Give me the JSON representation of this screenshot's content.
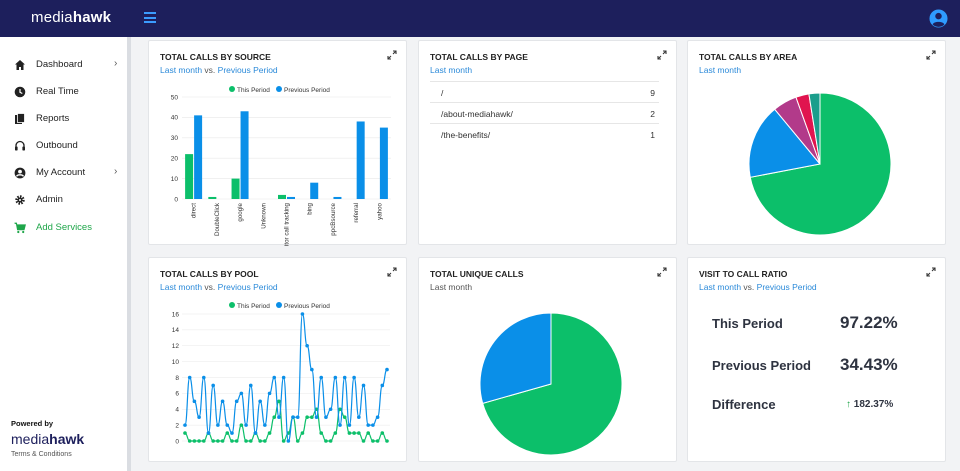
{
  "app": {
    "brand_light": "media",
    "brand_bold": "hawk"
  },
  "sidebar": {
    "items": [
      {
        "label": "Dashboard",
        "icon": "home-icon",
        "has_chevron": true
      },
      {
        "label": "Real Time",
        "icon": "clock-icon",
        "has_chevron": false
      },
      {
        "label": "Reports",
        "icon": "reports-icon",
        "has_chevron": false
      },
      {
        "label": "Outbound",
        "icon": "headset-icon",
        "has_chevron": false
      },
      {
        "label": "My Account",
        "icon": "user-circle-icon",
        "has_chevron": true
      },
      {
        "label": "Admin",
        "icon": "gear-icon",
        "has_chevron": false
      },
      {
        "label": "Add Services",
        "icon": "cart-icon",
        "has_chevron": false
      }
    ],
    "powered_by": "Powered by",
    "terms": "Terms & Conditions"
  },
  "cards": {
    "source": {
      "title": "TOTAL CALLS BY SOURCE",
      "sub_link1": "Last month",
      "sub_vs": " vs. ",
      "sub_link2": "Previous Period"
    },
    "page": {
      "title": "TOTAL CALLS BY PAGE",
      "sub_link1": "Last month",
      "rows": [
        {
          "path": "/",
          "count": "9"
        },
        {
          "path": "/about-mediahawk/",
          "count": "2"
        },
        {
          "path": "/the-benefits/",
          "count": "1"
        }
      ]
    },
    "area": {
      "title": "TOTAL CALLS BY AREA",
      "sub_link1": "Last month"
    },
    "pool": {
      "title": "TOTAL CALLS BY POOL",
      "sub_link1": "Last month",
      "sub_vs": " vs. ",
      "sub_link2": "Previous Period"
    },
    "unique": {
      "title": "TOTAL UNIQUE CALLS",
      "sub_text": "Last month"
    },
    "ratio": {
      "title": "VISIT TO CALL RATIO",
      "sub_link1": "Last month",
      "sub_vs": " vs. ",
      "sub_link2": "Previous Period",
      "this_label": "This Period",
      "this_value": "97.22%",
      "prev_label": "Previous Period",
      "prev_value": "34.43%",
      "diff_label": "Difference",
      "diff_arrow": "↑",
      "diff_value": "182.37%"
    }
  },
  "colors": {
    "this_period": "#0cbf6a",
    "previous_period": "#0a8fe8",
    "nav_green": "#1fa64a",
    "topbar": "#1d1f5c"
  },
  "chart_data": [
    {
      "type": "bar",
      "categories": [
        "direct",
        "DoubleClick",
        "google",
        "Unknown",
        "visitor call tracking",
        "bing",
        "ppcBsource",
        "referral",
        "yahoo"
      ],
      "series": [
        {
          "name": "This Period",
          "values": [
            22,
            1,
            10,
            0,
            2,
            0,
            0,
            0,
            0
          ]
        },
        {
          "name": "Previous Period",
          "values": [
            41,
            0,
            43,
            0,
            1,
            8,
            1,
            38,
            35
          ]
        }
      ],
      "yticks": [
        0,
        10,
        20,
        30,
        40,
        50
      ],
      "ylim": [
        0,
        50
      ],
      "legend": "top"
    },
    {
      "type": "pie",
      "labels": [
        "",
        "",
        "",
        "",
        ""
      ],
      "values": [
        72,
        17,
        5.5,
        3,
        2.5
      ],
      "colors": [
        "#0cbf6a",
        "#0a8fe8",
        "#b23a8a",
        "#e0144f",
        "#1b9e8c"
      ]
    },
    {
      "type": "line",
      "series": [
        {
          "name": "This Period",
          "values": [
            1,
            0,
            0,
            0,
            0,
            1,
            0,
            0,
            0,
            1,
            0,
            0,
            2,
            0,
            0,
            1,
            0,
            0,
            1,
            3,
            5,
            0,
            1,
            3,
            0,
            1,
            3,
            3,
            4,
            1,
            0,
            0,
            1,
            4,
            3,
            1,
            1,
            1,
            0,
            1,
            0,
            0,
            1,
            0
          ]
        },
        {
          "name": "Previous Period",
          "values": [
            2,
            8,
            5,
            3,
            8,
            1,
            7,
            2,
            5,
            2,
            1,
            5,
            6,
            2,
            7,
            1,
            5,
            2,
            6,
            8,
            3,
            8,
            0,
            3,
            3,
            16,
            12,
            9,
            3,
            8,
            3,
            4,
            8,
            2,
            8,
            2,
            8,
            3,
            7,
            2,
            2,
            3,
            7,
            9
          ]
        }
      ],
      "yticks": [
        0,
        2,
        4,
        6,
        8,
        10,
        12,
        14,
        16
      ],
      "ylim": [
        0,
        16
      ],
      "legend": "top"
    },
    {
      "type": "pie",
      "labels": [
        "",
        ""
      ],
      "values": [
        70.6,
        29.4
      ],
      "colors": [
        "#0cbf6a",
        "#0a8fe8"
      ]
    }
  ]
}
